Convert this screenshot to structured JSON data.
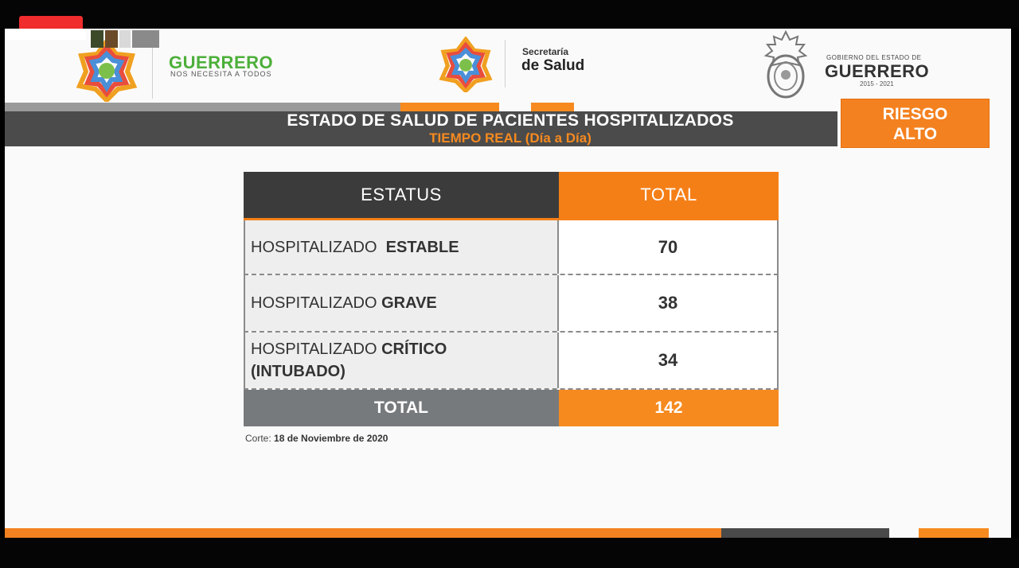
{
  "header": {
    "guerrero_logo": "GUERRERO",
    "guerrero_tagline": "NOS NECESITA A TODOS",
    "secretaria_small": "Secretaría",
    "secretaria_big": "de Salud",
    "gobierno_small": "GOBIERNO DEL ESTADO DE",
    "gobierno_big": "GUERRERO",
    "gobierno_years": "2015 - 2021"
  },
  "title": {
    "main": "ESTADO DE SALUD DE PACIENTES HOSPITALIZADOS",
    "sub": "TIEMPO REAL (Día a Día)",
    "risk_line1": "RIESGO",
    "risk_line2": "ALTO"
  },
  "table": {
    "col_status": "ESTATUS",
    "col_total": "TOTAL",
    "rows": [
      {
        "prefix": "HOSPITALIZADO ",
        "label": "ESTABLE",
        "extra": "",
        "value": "70"
      },
      {
        "prefix": "HOSPITALIZADO ",
        "label": "GRAVE",
        "extra": "",
        "value": "38"
      },
      {
        "prefix": "HOSPITALIZADO ",
        "label": "CRÍTICO",
        "extra": "(INTUBADO)",
        "value": "34"
      }
    ],
    "total_label": "TOTAL",
    "total_value": "142"
  },
  "footer": {
    "corte_label": "Corte:",
    "corte_date": "18 de Noviembre de 2020"
  },
  "colors": {
    "accent_orange": "#f57f17",
    "dark_gray": "#3b3b3b",
    "green_brand": "#4caf3a"
  }
}
